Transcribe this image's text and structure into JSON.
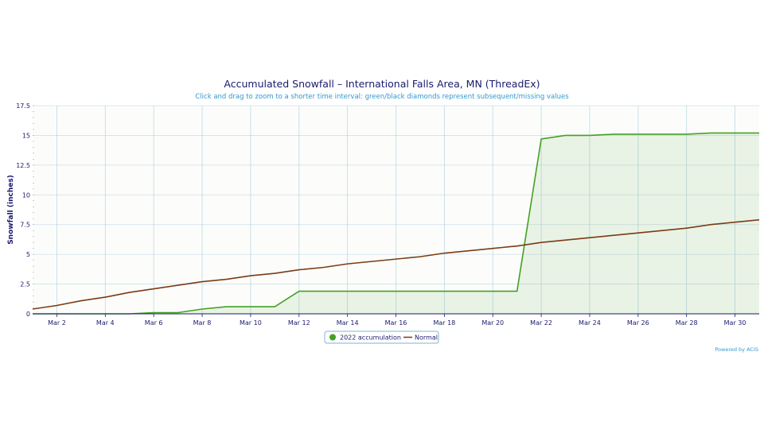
{
  "chart_data": {
    "type": "area",
    "title": "Accumulated Snowfall – International Falls Area, MN (ThreadEx)",
    "subtitle": "Click and drag to zoom to a shorter time interval: green/black diamonds represent subsequent/missing values",
    "ylabel": "Snowfall (inches)",
    "xlabel": "",
    "ylim": [
      0,
      17.5
    ],
    "yticks": [
      "0",
      "2.5",
      "5",
      "7.5",
      "10",
      "12.5",
      "15",
      "17.5"
    ],
    "x": [
      "Mar 1",
      "Mar 2",
      "Mar 3",
      "Mar 4",
      "Mar 5",
      "Mar 6",
      "Mar 7",
      "Mar 8",
      "Mar 9",
      "Mar 10",
      "Mar 11",
      "Mar 12",
      "Mar 13",
      "Mar 14",
      "Mar 15",
      "Mar 16",
      "Mar 17",
      "Mar 18",
      "Mar 19",
      "Mar 20",
      "Mar 21",
      "Mar 22",
      "Mar 23",
      "Mar 24",
      "Mar 25",
      "Mar 26",
      "Mar 27",
      "Mar 28",
      "Mar 29",
      "Mar 30",
      "Mar 31"
    ],
    "xticks": [
      "Mar 2",
      "Mar 4",
      "Mar 6",
      "Mar 8",
      "Mar 10",
      "Mar 12",
      "Mar 14",
      "Mar 16",
      "Mar 18",
      "Mar 20",
      "Mar 22",
      "Mar 24",
      "Mar 26",
      "Mar 28",
      "Mar 30"
    ],
    "series": [
      {
        "name": "2022 accumulation",
        "color": "#44a024",
        "values": [
          0,
          0,
          0,
          0,
          0,
          0.1,
          0.1,
          0.4,
          0.6,
          0.6,
          0.6,
          1.9,
          1.9,
          1.9,
          1.9,
          1.9,
          1.9,
          1.9,
          1.9,
          1.9,
          1.9,
          14.7,
          15.0,
          15.0,
          15.1,
          15.1,
          15.1,
          15.1,
          15.2,
          15.2,
          15.2
        ]
      },
      {
        "name": "Normal",
        "color": "#7b3b14",
        "values": [
          0.4,
          0.7,
          1.1,
          1.4,
          1.8,
          2.1,
          2.4,
          2.7,
          2.9,
          3.2,
          3.4,
          3.7,
          3.9,
          4.2,
          4.4,
          4.6,
          4.8,
          5.1,
          5.3,
          5.5,
          5.7,
          6.0,
          6.2,
          6.4,
          6.6,
          6.8,
          7.0,
          7.2,
          7.5,
          7.7,
          7.9
        ]
      }
    ],
    "grid": true,
    "legend": "bottom-center",
    "credit": "Powered by ACIS"
  }
}
